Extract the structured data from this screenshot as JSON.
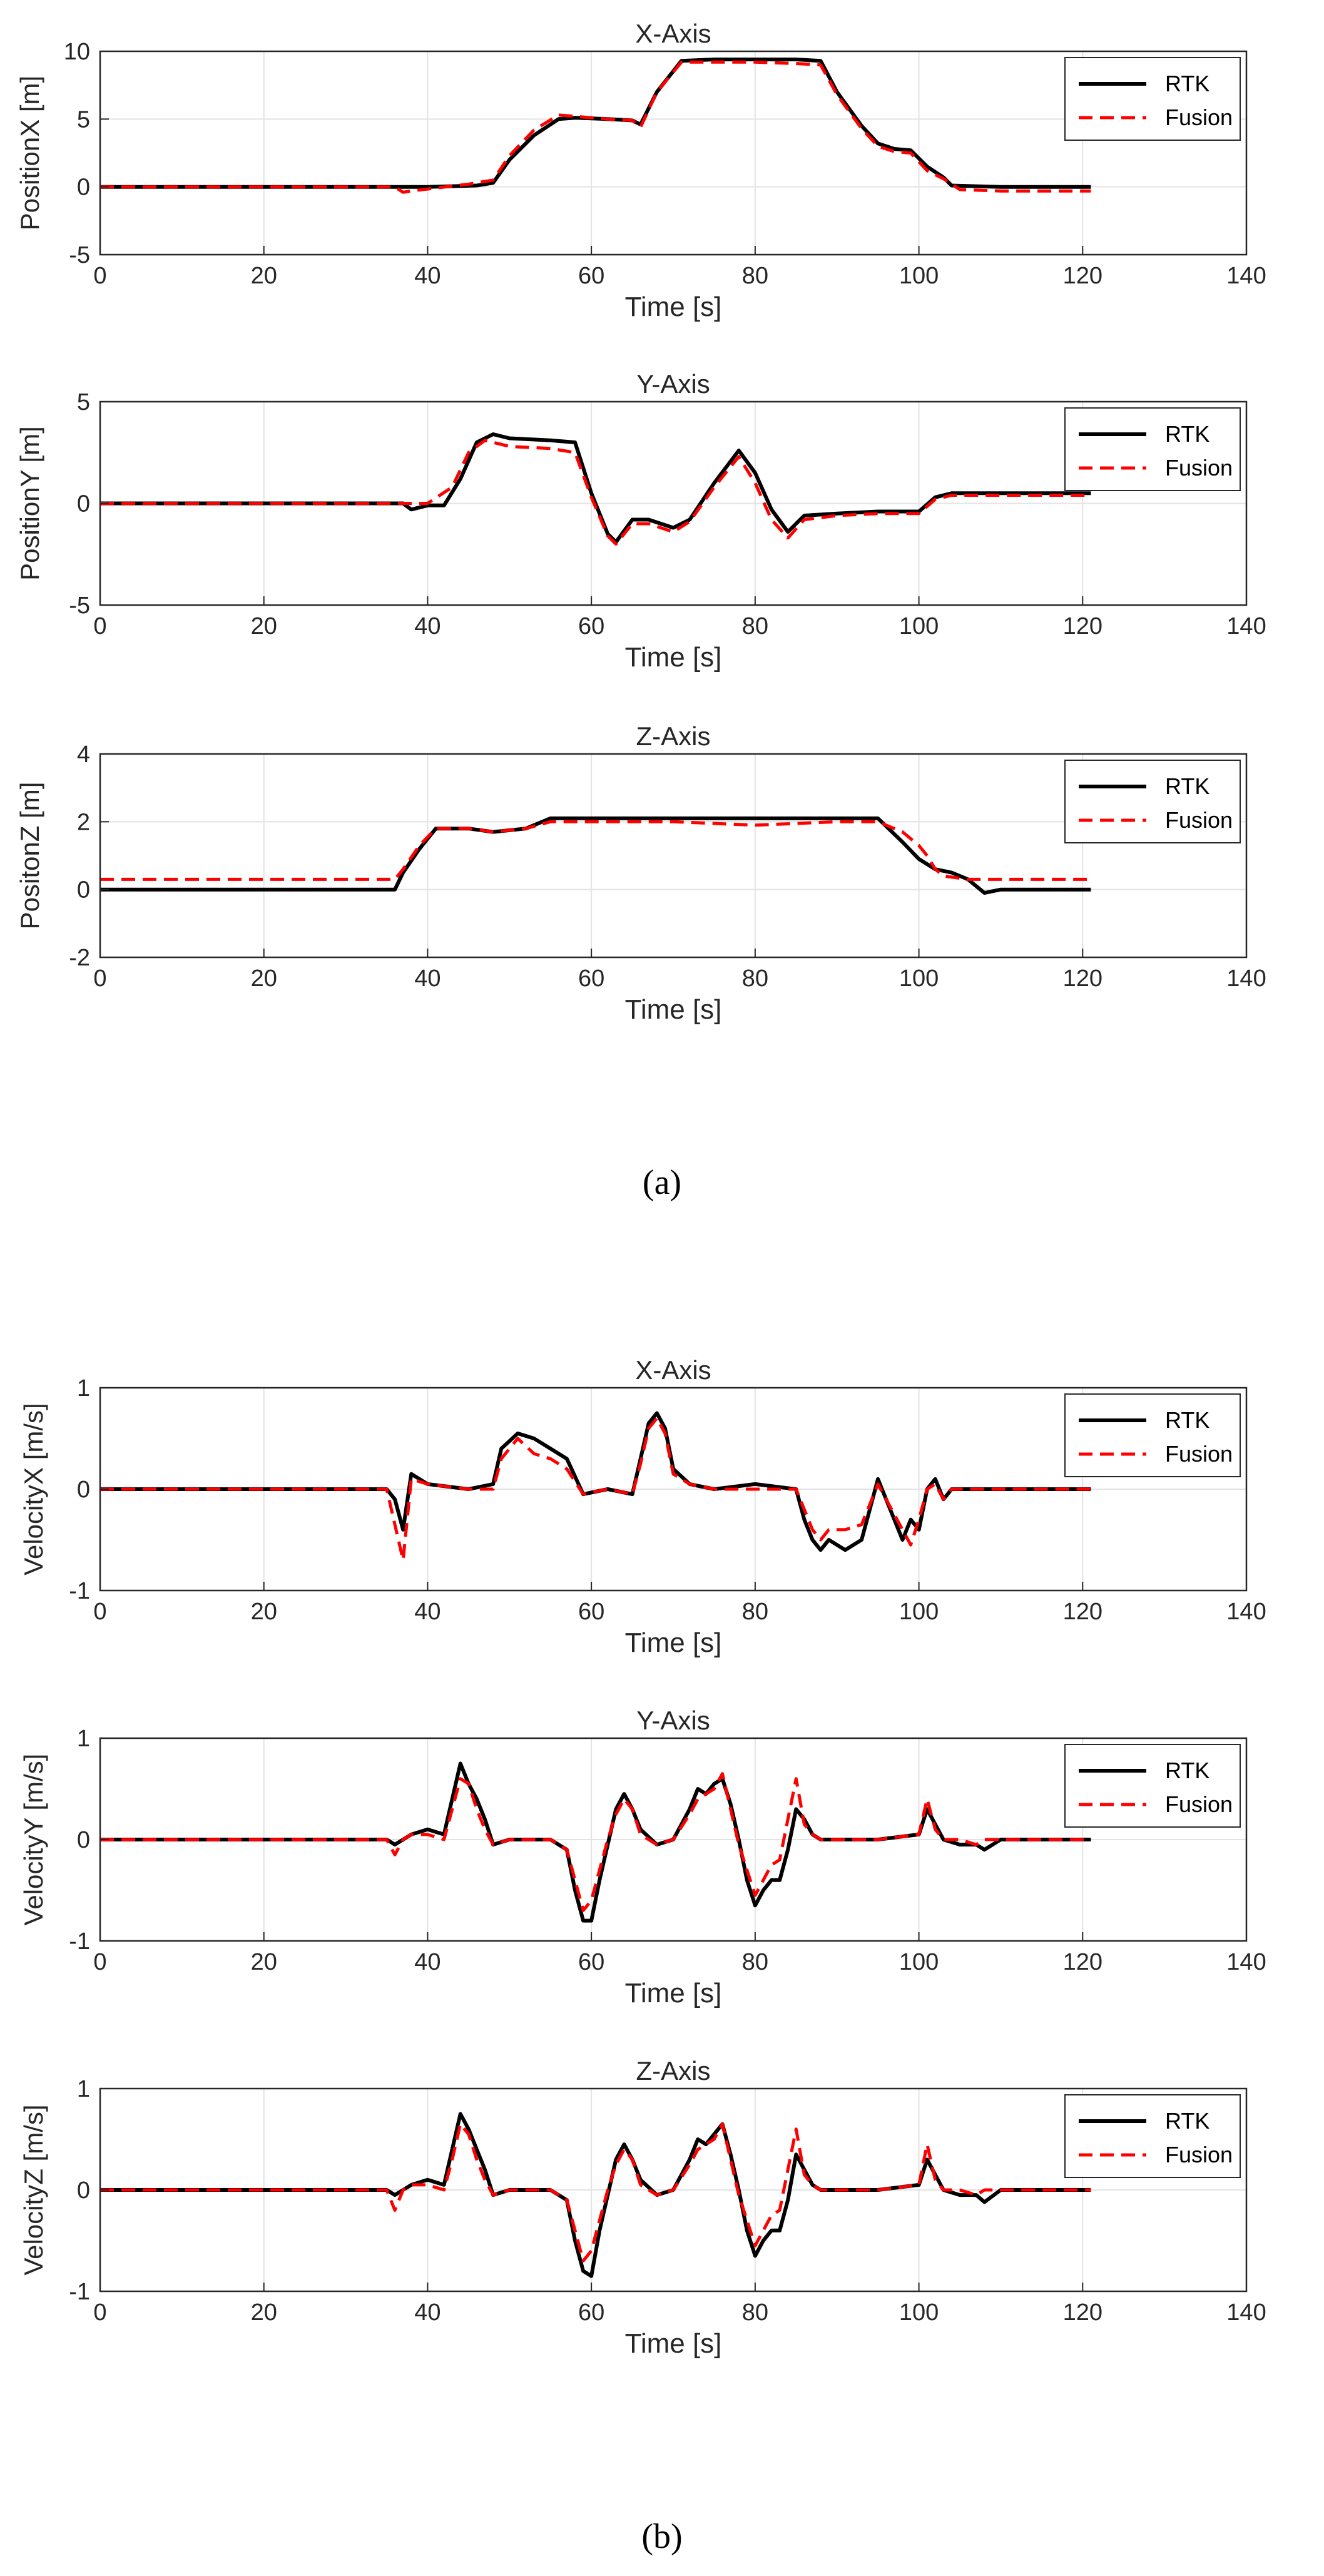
{
  "figure": {
    "panel_a_label": "(a)",
    "panel_b_label": "(b)",
    "legend": {
      "rtk": "RTK",
      "fusion": "Fusion"
    },
    "colors": {
      "rtk": "#000000",
      "fusion": "#ff0000",
      "grid": "#e3e3e3",
      "axis": "#262626"
    }
  },
  "chart_data": [
    {
      "type": "line",
      "panel": "a",
      "title": "X-Axis",
      "xlabel": "Time [s]",
      "ylabel": "PositionX [m]",
      "xlim": [
        0,
        140
      ],
      "ylim": [
        -5,
        10
      ],
      "xticks": [
        0,
        20,
        40,
        60,
        80,
        100,
        120,
        140
      ],
      "yticks": [
        -5,
        0,
        5,
        10
      ],
      "series": [
        {
          "name": "RTK",
          "x": [
            0,
            36,
            40,
            46,
            48,
            50,
            53,
            56,
            58,
            62,
            65,
            66,
            68,
            71,
            75,
            80,
            85,
            88,
            90,
            93,
            95,
            97,
            99,
            101,
            103,
            104,
            110,
            121
          ],
          "y": [
            0,
            0,
            0,
            0.1,
            0.3,
            2,
            3.8,
            5,
            5.1,
            5,
            4.9,
            4.6,
            7,
            9.3,
            9.4,
            9.4,
            9.4,
            9.3,
            7,
            4.5,
            3.2,
            2.8,
            2.7,
            1.5,
            0.7,
            0.1,
            0,
            0
          ]
        },
        {
          "name": "Fusion",
          "x": [
            0,
            36,
            37,
            38,
            45,
            48,
            50,
            53,
            56,
            58,
            62,
            65,
            66,
            68,
            71,
            75,
            80,
            85,
            88,
            90,
            93,
            95,
            97,
            99,
            101,
            103,
            105,
            110,
            121
          ],
          "y": [
            0,
            0,
            -0.4,
            -0.3,
            0.2,
            0.5,
            2.3,
            4.2,
            5.3,
            5.2,
            5,
            4.9,
            4.4,
            7,
            9.2,
            9.2,
            9.2,
            9.1,
            9,
            6.8,
            4.3,
            3,
            2.6,
            2.5,
            1.2,
            0.6,
            -0.2,
            -0.3,
            -0.3
          ]
        }
      ]
    },
    {
      "type": "line",
      "panel": "a",
      "title": "Y-Axis",
      "xlabel": "Time [s]",
      "ylabel": "PositionY [m]",
      "xlim": [
        0,
        140
      ],
      "ylim": [
        -5,
        5
      ],
      "xticks": [
        0,
        20,
        40,
        60,
        80,
        100,
        120,
        140
      ],
      "yticks": [
        -5,
        0,
        5
      ],
      "series": [
        {
          "name": "RTK",
          "x": [
            0,
            37,
            38,
            40,
            42,
            44,
            46,
            48,
            50,
            55,
            58,
            60,
            62,
            63,
            65,
            67,
            70,
            72,
            75,
            78,
            80,
            82,
            84,
            86,
            90,
            95,
            100,
            102,
            104,
            110,
            121
          ],
          "y": [
            0,
            0,
            -0.3,
            -0.1,
            -0.1,
            1.2,
            3,
            3.4,
            3.2,
            3.1,
            3,
            0.5,
            -1.5,
            -1.9,
            -0.8,
            -0.8,
            -1.2,
            -0.8,
            1,
            2.6,
            1.5,
            -0.3,
            -1.4,
            -0.6,
            -0.5,
            -0.4,
            -0.4,
            0.3,
            0.5,
            0.5,
            0.5
          ]
        },
        {
          "name": "Fusion",
          "x": [
            0,
            37,
            40,
            43,
            45,
            47,
            50,
            55,
            58,
            60,
            62,
            63,
            65,
            67,
            70,
            72,
            75,
            78,
            80,
            82,
            84,
            86,
            90,
            95,
            100,
            102,
            104,
            110,
            121
          ],
          "y": [
            0,
            0,
            0,
            0.8,
            2.5,
            3.1,
            2.8,
            2.7,
            2.5,
            0.3,
            -1.6,
            -2,
            -1,
            -1,
            -1.4,
            -0.9,
            0.8,
            2.3,
            1,
            -0.8,
            -1.7,
            -0.8,
            -0.6,
            -0.5,
            -0.5,
            0.2,
            0.4,
            0.4,
            0.4
          ]
        }
      ]
    },
    {
      "type": "line",
      "panel": "a",
      "title": "Z-Axis",
      "xlabel": "Time [s]",
      "ylabel": "PositonZ [m]",
      "xlim": [
        0,
        140
      ],
      "ylim": [
        -2,
        4
      ],
      "xticks": [
        0,
        20,
        40,
        60,
        80,
        100,
        120,
        140
      ],
      "yticks": [
        -2,
        0,
        2,
        4
      ],
      "series": [
        {
          "name": "RTK",
          "x": [
            0,
            36,
            37,
            39,
            41,
            45,
            48,
            52,
            55,
            60,
            70,
            80,
            90,
            95,
            98,
            100,
            102,
            104,
            106,
            108,
            110,
            121
          ],
          "y": [
            0,
            0,
            0.5,
            1.2,
            1.8,
            1.8,
            1.7,
            1.8,
            2.1,
            2.1,
            2.1,
            2.1,
            2.1,
            2.1,
            1.4,
            0.9,
            0.6,
            0.5,
            0.3,
            -0.1,
            0,
            0
          ]
        },
        {
          "name": "Fusion",
          "x": [
            0,
            36,
            37,
            39,
            41,
            45,
            48,
            52,
            55,
            60,
            70,
            80,
            90,
            95,
            98,
            100,
            101,
            102,
            103,
            106,
            121
          ],
          "y": [
            0.3,
            0.3,
            0.6,
            1.3,
            1.8,
            1.8,
            1.7,
            1.8,
            2,
            2,
            2,
            1.9,
            2,
            2,
            1.7,
            1.3,
            1,
            0.6,
            0.4,
            0.3,
            0.3
          ]
        }
      ]
    },
    {
      "type": "line",
      "panel": "b",
      "title": "X-Axis",
      "xlabel": "Time [s]",
      "ylabel": "VelocityX [m/s]",
      "xlim": [
        0,
        140
      ],
      "ylim": [
        -1,
        1
      ],
      "xticks": [
        0,
        20,
        40,
        60,
        80,
        100,
        120,
        140
      ],
      "yticks": [
        -1,
        0,
        1
      ],
      "series": [
        {
          "name": "RTK",
          "x": [
            0,
            35,
            36,
            37,
            38,
            40,
            45,
            48,
            49,
            51,
            53,
            55,
            57,
            59,
            62,
            65,
            66,
            67,
            68,
            69,
            70,
            72,
            75,
            80,
            85,
            86,
            87,
            88,
            89,
            91,
            93,
            94,
            95,
            96,
            97,
            98,
            99,
            100,
            101,
            102,
            103,
            104,
            105,
            110,
            121
          ],
          "y": [
            0,
            0,
            -0.1,
            -0.4,
            0.15,
            0.05,
            0,
            0.05,
            0.4,
            0.55,
            0.5,
            0.4,
            0.3,
            -0.05,
            0,
            -0.05,
            0.3,
            0.65,
            0.75,
            0.6,
            0.2,
            0.05,
            0,
            0.05,
            0,
            -0.3,
            -0.5,
            -0.6,
            -0.5,
            -0.6,
            -0.5,
            -0.2,
            0.1,
            -0.1,
            -0.3,
            -0.5,
            -0.3,
            -0.4,
            0,
            0.1,
            -0.1,
            0,
            0,
            0,
            0
          ]
        },
        {
          "name": "Fusion",
          "x": [
            0,
            35,
            36,
            37,
            38,
            40,
            45,
            48,
            49,
            51,
            53,
            55,
            57,
            59,
            62,
            65,
            66,
            67,
            68,
            69,
            70,
            72,
            75,
            80,
            85,
            86,
            87,
            88,
            89,
            91,
            93,
            94,
            95,
            96,
            97,
            98,
            99,
            100,
            101,
            102,
            103,
            104,
            105,
            110,
            121
          ],
          "y": [
            0,
            0,
            -0.35,
            -0.7,
            0.1,
            0.05,
            0,
            0,
            0.3,
            0.5,
            0.35,
            0.3,
            0.2,
            -0.05,
            0,
            -0.05,
            0.25,
            0.6,
            0.7,
            0.55,
            0.15,
            0.05,
            0,
            0,
            0,
            -0.2,
            -0.4,
            -0.5,
            -0.4,
            -0.4,
            -0.35,
            -0.15,
            0.05,
            -0.1,
            -0.25,
            -0.4,
            -0.55,
            -0.3,
            0,
            0.05,
            -0.1,
            0,
            0,
            0,
            0
          ]
        }
      ]
    },
    {
      "type": "line",
      "panel": "b",
      "title": "Y-Axis",
      "xlabel": "Time [s]",
      "ylabel": "VelocityY [m/s]",
      "xlim": [
        0,
        140
      ],
      "ylim": [
        -1,
        1
      ],
      "xticks": [
        0,
        20,
        40,
        60,
        80,
        100,
        120,
        140
      ],
      "yticks": [
        -1,
        0,
        1
      ],
      "series": [
        {
          "name": "RTK",
          "x": [
            0,
            35,
            36,
            37,
            38,
            40,
            42,
            43,
            44,
            45,
            46,
            47,
            48,
            50,
            55,
            57,
            58,
            59,
            60,
            61,
            62,
            63,
            64,
            65,
            66,
            68,
            70,
            72,
            73,
            74,
            75,
            76,
            77,
            78,
            79,
            80,
            81,
            82,
            83,
            84,
            85,
            86,
            87,
            88,
            90,
            95,
            100,
            101,
            102,
            103,
            105,
            107,
            108,
            110,
            121
          ],
          "y": [
            0,
            0,
            -0.05,
            0,
            0.05,
            0.1,
            0.05,
            0.4,
            0.75,
            0.55,
            0.4,
            0.2,
            -0.05,
            0,
            0,
            -0.1,
            -0.5,
            -0.8,
            -0.8,
            -0.4,
            -0.05,
            0.3,
            0.45,
            0.3,
            0.1,
            -0.05,
            0,
            0.3,
            0.5,
            0.45,
            0.55,
            0.6,
            0.35,
            0,
            -0.4,
            -0.65,
            -0.5,
            -0.4,
            -0.4,
            -0.1,
            0.3,
            0.2,
            0.05,
            0,
            0,
            0,
            0.05,
            0.3,
            0.15,
            0,
            -0.05,
            -0.05,
            -0.1,
            0,
            0
          ]
        },
        {
          "name": "Fusion",
          "x": [
            0,
            35,
            36,
            37,
            38,
            40,
            42,
            43,
            44,
            45,
            46,
            47,
            48,
            50,
            55,
            57,
            58,
            59,
            60,
            61,
            62,
            63,
            64,
            65,
            66,
            68,
            70,
            72,
            73,
            74,
            75,
            76,
            77,
            78,
            79,
            80,
            81,
            82,
            83,
            84,
            85,
            86,
            87,
            88,
            90,
            95,
            100,
            101,
            102,
            103,
            105,
            107,
            108,
            110,
            121
          ],
          "y": [
            0,
            0,
            -0.15,
            0,
            0.05,
            0.05,
            0,
            0.3,
            0.6,
            0.55,
            0.3,
            0.1,
            -0.05,
            0,
            0,
            -0.1,
            -0.4,
            -0.7,
            -0.6,
            -0.3,
            0,
            0.25,
            0.4,
            0.3,
            0.05,
            -0.05,
            0,
            0.25,
            0.4,
            0.45,
            0.5,
            0.65,
            0.3,
            -0.05,
            -0.3,
            -0.55,
            -0.4,
            -0.25,
            -0.2,
            0.2,
            0.6,
            0.15,
            0.05,
            0,
            0,
            0,
            0.05,
            0.4,
            0.1,
            0,
            0,
            -0.05,
            0,
            0,
            0
          ]
        }
      ]
    },
    {
      "type": "line",
      "panel": "b",
      "title": "Z-Axis",
      "xlabel": "Time [s]",
      "ylabel": "VelocityZ [m/s]",
      "xlim": [
        0,
        140
      ],
      "ylim": [
        -1,
        1
      ],
      "xticks": [
        0,
        20,
        40,
        60,
        80,
        100,
        120,
        140
      ],
      "yticks": [
        -1,
        0,
        1
      ],
      "series": [
        {
          "name": "RTK",
          "x": [
            0,
            35,
            36,
            37,
            38,
            40,
            42,
            43,
            44,
            45,
            46,
            47,
            48,
            50,
            55,
            57,
            58,
            59,
            60,
            61,
            62,
            63,
            64,
            65,
            66,
            68,
            70,
            72,
            73,
            74,
            75,
            76,
            77,
            78,
            79,
            80,
            81,
            82,
            83,
            84,
            85,
            86,
            87,
            88,
            90,
            95,
            100,
            101,
            102,
            103,
            105,
            107,
            108,
            110,
            121
          ],
          "y": [
            0,
            0,
            -0.05,
            0,
            0.05,
            0.1,
            0.05,
            0.4,
            0.75,
            0.6,
            0.4,
            0.2,
            -0.05,
            0,
            0,
            -0.1,
            -0.5,
            -0.8,
            -0.85,
            -0.4,
            -0.05,
            0.3,
            0.45,
            0.3,
            0.1,
            -0.05,
            0,
            0.3,
            0.5,
            0.45,
            0.55,
            0.65,
            0.35,
            0,
            -0.4,
            -0.65,
            -0.5,
            -0.4,
            -0.4,
            -0.1,
            0.35,
            0.2,
            0.05,
            0,
            0,
            0,
            0.05,
            0.3,
            0.15,
            0,
            -0.05,
            -0.05,
            -0.12,
            0,
            0
          ]
        },
        {
          "name": "Fusion",
          "x": [
            0,
            35,
            36,
            37,
            38,
            40,
            42,
            43,
            44,
            45,
            46,
            47,
            48,
            50,
            55,
            57,
            58,
            59,
            60,
            61,
            62,
            63,
            64,
            65,
            66,
            68,
            70,
            72,
            73,
            74,
            75,
            76,
            77,
            78,
            79,
            80,
            81,
            82,
            83,
            84,
            85,
            86,
            87,
            88,
            90,
            95,
            100,
            101,
            102,
            103,
            105,
            107,
            108,
            110,
            121
          ],
          "y": [
            0,
            0,
            -0.2,
            0,
            0.05,
            0.05,
            0,
            0.3,
            0.65,
            0.55,
            0.3,
            0.1,
            -0.05,
            0,
            0,
            -0.1,
            -0.4,
            -0.7,
            -0.6,
            -0.3,
            0,
            0.25,
            0.4,
            0.3,
            0.05,
            -0.05,
            0,
            0.25,
            0.4,
            0.45,
            0.5,
            0.65,
            0.3,
            -0.05,
            -0.3,
            -0.55,
            -0.4,
            -0.25,
            -0.2,
            0.2,
            0.6,
            0.15,
            0.05,
            0,
            0,
            0,
            0.05,
            0.45,
            0.1,
            0,
            0,
            -0.05,
            0,
            0,
            0
          ]
        }
      ]
    }
  ]
}
